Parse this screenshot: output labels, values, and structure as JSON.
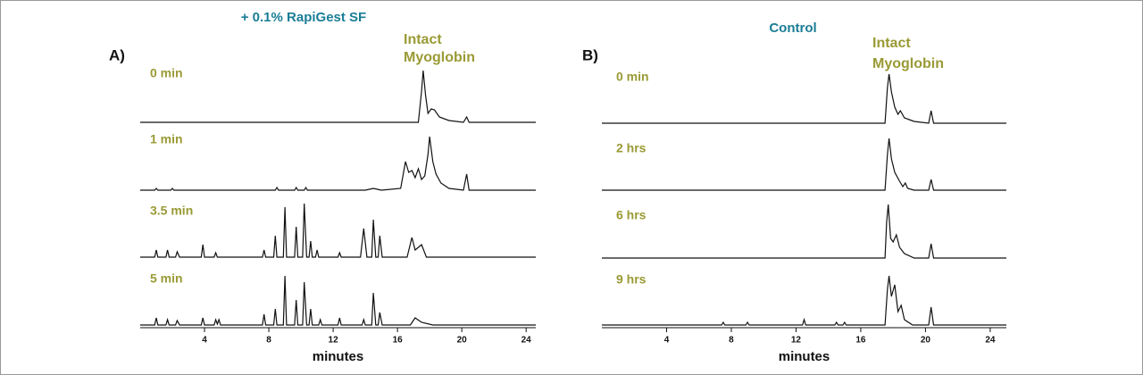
{
  "chart_data": [
    {
      "type": "line",
      "panel": "A)",
      "title": "+ 0.1% RapiGest SF",
      "annotation": [
        "Intact",
        "Myoglobin"
      ],
      "xlabel": "minutes",
      "xlim": [
        0,
        24.6
      ],
      "xticks": [
        4,
        8,
        12,
        16,
        20,
        24
      ],
      "ylim": [
        0,
        60
      ],
      "color": "#111111",
      "series": [
        {
          "name": "0 min",
          "x": [
            0,
            17.3,
            17.5,
            17.6,
            17.75,
            17.9,
            18.1,
            18.3,
            18.6,
            19.2,
            20.1,
            20.3,
            20.45,
            24.6
          ],
          "values": [
            0,
            0,
            35,
            58,
            30,
            10,
            15,
            14,
            6,
            2,
            0,
            6,
            0,
            0
          ]
        },
        {
          "name": "1 min",
          "x": [
            0,
            0.9,
            1.0,
            1.1,
            1.9,
            2.0,
            2.1,
            8.4,
            8.5,
            8.6,
            9.6,
            9.7,
            9.8,
            10.2,
            10.3,
            10.4,
            14.0,
            14.5,
            15.0,
            16.2,
            16.5,
            16.7,
            16.9,
            17.1,
            17.3,
            17.5,
            17.7,
            17.9,
            18.0,
            18.2,
            18.4,
            18.7,
            19.2,
            20.1,
            20.3,
            20.45,
            24.6
          ],
          "values": [
            0,
            0,
            2,
            0,
            0,
            2,
            0,
            0,
            3,
            0,
            0,
            3,
            0,
            0,
            3,
            0,
            0,
            2,
            0,
            2,
            32,
            20,
            22,
            14,
            24,
            12,
            16,
            40,
            60,
            32,
            18,
            8,
            2,
            0,
            18,
            0,
            0
          ]
        },
        {
          "name": "3.5 min",
          "x": [
            0,
            0.9,
            1.0,
            1.1,
            1.6,
            1.7,
            1.8,
            2.2,
            2.3,
            2.45,
            3.8,
            3.9,
            4.0,
            4.6,
            4.7,
            4.8,
            7.6,
            7.7,
            7.8,
            8.3,
            8.4,
            8.5,
            8.9,
            9.0,
            9.1,
            9.6,
            9.7,
            9.8,
            10.1,
            10.2,
            10.35,
            10.5,
            10.6,
            10.7,
            10.9,
            11.0,
            11.1,
            12.3,
            12.4,
            12.5,
            13.7,
            13.9,
            14.1,
            14.4,
            14.5,
            14.65,
            14.8,
            14.9,
            15.05,
            16.6,
            16.9,
            17.1,
            17.5,
            17.8,
            18.5,
            24.6
          ],
          "values": [
            0,
            0,
            8,
            0,
            0,
            8,
            0,
            0,
            6,
            0,
            0,
            14,
            0,
            0,
            5,
            0,
            0,
            8,
            0,
            0,
            24,
            0,
            0,
            56,
            0,
            0,
            34,
            0,
            0,
            60,
            0,
            0,
            18,
            0,
            0,
            8,
            0,
            0,
            5,
            0,
            0,
            32,
            0,
            0,
            42,
            0,
            0,
            24,
            0,
            0,
            22,
            8,
            14,
            0,
            0,
            0
          ]
        },
        {
          "name": "5 min",
          "x": [
            0,
            0.9,
            1.0,
            1.1,
            1.6,
            1.7,
            1.8,
            2.2,
            2.3,
            2.45,
            3.8,
            3.9,
            4.0,
            4.6,
            4.7,
            4.8,
            4.9,
            5.0,
            7.6,
            7.7,
            7.8,
            8.3,
            8.4,
            8.5,
            8.9,
            9.0,
            9.1,
            9.6,
            9.7,
            9.8,
            10.1,
            10.2,
            10.35,
            10.5,
            10.6,
            10.7,
            11.1,
            11.2,
            11.3,
            12.3,
            12.4,
            12.5,
            13.8,
            13.9,
            14.0,
            14.4,
            14.5,
            14.65,
            14.8,
            14.9,
            15.05,
            16.8,
            17.1,
            17.5,
            18.2,
            24.6
          ],
          "values": [
            0,
            0,
            8,
            0,
            0,
            6,
            0,
            0,
            5,
            0,
            0,
            8,
            0,
            0,
            6,
            1,
            6,
            0,
            0,
            12,
            0,
            0,
            18,
            0,
            0,
            55,
            0,
            0,
            28,
            0,
            0,
            48,
            0,
            0,
            18,
            0,
            0,
            6,
            0,
            0,
            8,
            0,
            0,
            6,
            0,
            0,
            36,
            0,
            0,
            14,
            0,
            0,
            8,
            3,
            0,
            0
          ]
        }
      ]
    },
    {
      "type": "line",
      "panel": "B)",
      "title": "Control",
      "annotation": [
        "Intact",
        "Myoglobin"
      ],
      "xlabel": "minutes",
      "xlim": [
        0,
        25
      ],
      "xticks": [
        4,
        8,
        12,
        16,
        20,
        24
      ],
      "ylim": [
        0,
        60
      ],
      "color": "#111111",
      "series": [
        {
          "name": "0 min",
          "x": [
            0,
            17.5,
            17.65,
            17.75,
            17.9,
            18.1,
            18.3,
            18.45,
            18.7,
            19.3,
            20.2,
            20.35,
            20.5,
            25
          ],
          "values": [
            0,
            0,
            40,
            55,
            35,
            18,
            10,
            14,
            6,
            2,
            0,
            14,
            0,
            0
          ]
        },
        {
          "name": "2 hrs",
          "x": [
            0,
            17.5,
            17.65,
            17.75,
            17.9,
            18.1,
            18.4,
            18.6,
            18.75,
            18.9,
            19.3,
            20.2,
            20.35,
            20.5,
            25
          ],
          "values": [
            0,
            0,
            40,
            58,
            35,
            20,
            10,
            4,
            8,
            2,
            0,
            0,
            12,
            0,
            0
          ]
        },
        {
          "name": "6 hrs",
          "x": [
            0,
            17.5,
            17.6,
            17.7,
            17.85,
            18.0,
            18.2,
            18.4,
            18.7,
            19.3,
            20.2,
            20.35,
            20.5,
            25
          ],
          "values": [
            0,
            0,
            40,
            60,
            22,
            18,
            26,
            12,
            5,
            0,
            0,
            16,
            0,
            0
          ]
        },
        {
          "name": "9 hrs",
          "x": [
            0,
            7.4,
            7.5,
            7.6,
            8.9,
            9.0,
            9.1,
            12.4,
            12.5,
            12.6,
            14.4,
            14.5,
            14.6,
            14.9,
            15.0,
            15.1,
            17.5,
            17.65,
            17.75,
            17.9,
            18.1,
            18.3,
            18.5,
            18.7,
            19.2,
            20.2,
            20.35,
            20.5,
            25
          ],
          "values": [
            0,
            0,
            3,
            0,
            0,
            3,
            0,
            0,
            6,
            0,
            0,
            3,
            0,
            0,
            3,
            0,
            0,
            40,
            55,
            32,
            45,
            15,
            22,
            6,
            0,
            0,
            20,
            0,
            0
          ]
        }
      ]
    }
  ]
}
